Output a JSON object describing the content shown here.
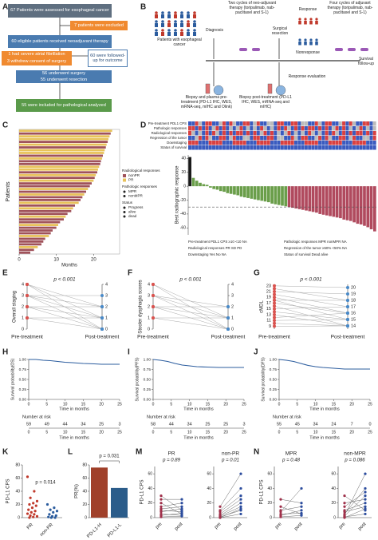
{
  "panel_labels": [
    "A",
    "B",
    "C",
    "D",
    "E",
    "F",
    "G",
    "H",
    "I",
    "J",
    "K",
    "L",
    "M",
    "N"
  ],
  "A": {
    "boxes": [
      "67 Patients were assessed for esophageal cancer",
      "7 patients were excluded",
      "60 eligible patients received neoadjuvant therapy",
      "1 had severe atrial fibrillation",
      "3 withdrew consent of surgery",
      "60 were followed-up for outcome",
      "56 underwent surgery",
      "55 underwent resection",
      "55 were included for pathological analyzed"
    ]
  },
  "B": {
    "patients": "Patients with esophageal cancer",
    "diagnosis": "Diagnosis",
    "neoadjuvant": "Two cycles of neo-adjuvant therapy (toripalimab, nab-paclitaxel and S-1)",
    "surgery": "Surgical resection",
    "response": "Response",
    "nonresponse": "Nonresponse",
    "adjuvant": "Four cycles of adjuvant therapy (toripalimab, nab-paclitaxel and S-1)",
    "followup": "Survival follow-up",
    "evaluation": "Response evaluation",
    "pre_biopsy": "Biopsy and plasma pre-treatment (PD-L1 IHC, WES, mRNA-seq, mIHC and Olink)",
    "post_biopsy": "Biopsy post-treatment (PD-L1 IHC, WES, mRNA-seq and mIHC)"
  },
  "C": {
    "ylabel": "Patients",
    "xlabel": "Months",
    "xlim": [
      0,
      27
    ],
    "xticks": [
      0,
      10,
      20
    ],
    "durations": [
      25,
      24.6,
      24.3,
      24,
      23.8,
      23.5,
      23.3,
      23,
      22.8,
      22.5,
      22.3,
      22,
      21.8,
      21.5,
      21.2,
      21,
      20.6,
      20.3,
      20,
      19.5,
      19,
      18.5,
      18,
      17.5,
      17,
      16.5,
      16,
      15,
      14.5,
      14,
      13,
      12.5,
      12,
      11,
      10.5,
      10,
      9,
      8.5,
      8,
      7,
      6.5,
      6,
      5,
      4,
      3
    ],
    "groups": [
      1,
      0,
      1,
      1,
      0,
      1,
      0,
      1,
      1,
      0,
      1,
      0,
      0,
      1,
      1,
      0,
      1,
      0,
      1,
      0,
      0,
      1,
      0,
      1,
      0,
      0,
      1,
      0,
      1,
      0,
      0,
      1,
      0,
      0,
      1,
      0,
      0,
      0,
      1,
      0,
      0,
      0,
      1,
      0,
      0
    ],
    "colors": [
      "#a0525a",
      "#e8c25a"
    ],
    "legend": [
      {
        "title": "Radiological responses",
        "items": [
          "nonPR",
          "PR"
        ]
      },
      {
        "title": "Pathologic responses",
        "items": [
          "MPR",
          "nonMPR"
        ]
      },
      {
        "title": "Status",
        "items": [
          "Progress",
          "alive",
          "dead"
        ]
      }
    ]
  },
  "D": {
    "rows": [
      "Pre-treatment PDL1 CPS",
      "Pathologic responses",
      "Radiological responses",
      "Regression of the tumor",
      "Downstaging",
      "Status of survival"
    ],
    "ylabel": "Best radiographic response",
    "ylim": [
      -70,
      45
    ],
    "yticks": [
      -60,
      -40,
      -20,
      0,
      20,
      40
    ],
    "reference_line": -30,
    "values": [
      42,
      12,
      8,
      5,
      3,
      2,
      -2,
      -4,
      -5,
      -7,
      -8,
      -10,
      -11,
      -12,
      -13,
      -15,
      -16,
      -17,
      -18,
      -19,
      -20,
      -21,
      -22,
      -23,
      -25,
      -26,
      -27,
      -28,
      -29,
      -30,
      -31,
      -32,
      -33,
      -34,
      -35,
      -36,
      -37,
      -38,
      -40,
      -41,
      -42,
      -43,
      -44,
      -45,
      -46,
      -48,
      -49,
      -50,
      -52,
      -54,
      -55,
      -57,
      -59,
      -62,
      -65
    ],
    "groups": [
      0,
      1,
      1,
      1,
      1,
      1,
      1,
      1,
      1,
      1,
      1,
      1,
      1,
      1,
      1,
      1,
      1,
      1,
      1,
      1,
      1,
      1,
      1,
      1,
      1,
      1,
      1,
      1,
      1,
      2,
      2,
      2,
      2,
      2,
      2,
      2,
      2,
      2,
      2,
      2,
      2,
      2,
      2,
      2,
      2,
      2,
      2,
      2,
      2,
      2,
      2,
      2,
      2,
      2,
      2
    ],
    "colors": [
      "#1a1a1a",
      "#6a9e4a",
      "#b04a5e"
    ],
    "legend": [
      "Pre-treatment PDL1 CPS ≥10 <10 NA",
      "Pathologic responses MPR nonMPR NA",
      "Radiological responses PR SD PD",
      "Regression of the tumor ≥50% <50% NA",
      "Downstaging Yes No NA",
      "Status of survival Dead alive"
    ]
  },
  "E": {
    "p": "p < 0.001",
    "ylabel": "Overall staging",
    "xlabels": [
      "Pre-treatment",
      "Post-treatment"
    ],
    "ylim": [
      0,
      4
    ],
    "yticks": [
      0,
      1,
      2,
      3,
      4
    ],
    "pre": [
      4,
      4,
      4,
      3,
      3,
      3,
      3,
      2,
      2,
      2,
      1,
      1
    ],
    "post": [
      0,
      1,
      2,
      0,
      1,
      2,
      3,
      0,
      1,
      2,
      0,
      1
    ]
  },
  "F": {
    "p": "p < 0.001",
    "ylabel": "Stooler dysphagia scores",
    "xlabels": [
      "Pre-treatment",
      "Post-treatment"
    ],
    "ylim": [
      0,
      4
    ],
    "yticks": [
      0,
      1,
      2,
      3,
      4
    ],
    "pre": [
      4,
      4,
      3,
      3,
      3,
      2,
      2,
      2,
      1,
      1
    ],
    "post": [
      0,
      1,
      0,
      1,
      2,
      0,
      1,
      2,
      0,
      1
    ]
  },
  "G": {
    "p": "p < 0.001",
    "ylabel": "cMDL",
    "xlabels": [
      "Pre-treatment",
      "Post-treatment"
    ],
    "ylim": [
      8,
      23.5
    ],
    "yticks": [
      9,
      11,
      13,
      15,
      17,
      19,
      21,
      23
    ],
    "y2lim": [
      13.5,
      20.5
    ],
    "y2ticks": [
      14,
      15,
      16,
      17,
      18,
      19,
      20
    ],
    "pre": [
      23,
      22,
      21,
      20,
      19,
      18,
      18,
      17,
      16,
      15,
      14,
      13,
      12,
      11,
      10,
      9
    ],
    "post": [
      20,
      18,
      19,
      17,
      16,
      18,
      15,
      16,
      14,
      17,
      15,
      14,
      16,
      15,
      14,
      14
    ]
  },
  "H": {
    "ylabel": "Survival probability(OS)",
    "xlabel": "Time in months",
    "risk_title": "Number at risk",
    "at_risk": [
      59,
      49,
      44,
      34,
      25,
      3
    ],
    "xlim": [
      0,
      25
    ],
    "xticks": [
      0,
      5,
      10,
      15,
      20,
      25
    ],
    "ylim": [
      0,
      1
    ],
    "yticks": [
      {
        "value": 0,
        "label": "0.00"
      },
      {
        "value": 0.25,
        "label": "0.25"
      },
      {
        "value": 0.5,
        "label": "0.50"
      },
      {
        "value": 0.75,
        "label": "0.75"
      },
      {
        "value": 1,
        "label": "1.00"
      }
    ],
    "x": [
      0,
      2,
      4,
      6,
      8,
      10,
      12,
      15,
      18,
      20,
      25
    ],
    "y": [
      1,
      1,
      0.98,
      0.97,
      0.95,
      0.93,
      0.92,
      0.9,
      0.89,
      0.88,
      0.88
    ],
    "color": "#2b5c9e"
  },
  "I": {
    "ylabel": "Survival probability(PFS)",
    "xlabel": "Time in months",
    "risk_title": "Number at risk",
    "at_risk": [
      58,
      44,
      34,
      25,
      25,
      3
    ],
    "xlim": [
      0,
      25
    ],
    "xticks": [
      0,
      5,
      10,
      15,
      20,
      25
    ],
    "ylim": [
      0,
      1
    ],
    "yticks": [
      {
        "value": 0,
        "label": "0.00"
      },
      {
        "value": 0.25,
        "label": "0.25"
      },
      {
        "value": 0.5,
        "label": "0.50"
      },
      {
        "value": 0.75,
        "label": "0.75"
      },
      {
        "value": 1,
        "label": "1.00"
      }
    ],
    "x": [
      0,
      2,
      4,
      6,
      8,
      10,
      12,
      15,
      18,
      20,
      25
    ],
    "y": [
      1,
      0.98,
      0.95,
      0.9,
      0.86,
      0.84,
      0.82,
      0.81,
      0.8,
      0.8,
      0.8
    ],
    "color": "#2b5c9e"
  },
  "J": {
    "ylabel": "Survival probability(DFS)",
    "xlabel": "Time in months",
    "risk_title": "Number at risk",
    "at_risk": [
      55,
      45,
      34,
      24,
      7,
      0
    ],
    "xlim": [
      0,
      25
    ],
    "xticks": [
      0,
      5,
      10,
      15,
      20,
      25
    ],
    "ylim": [
      0,
      1
    ],
    "yticks": [
      {
        "value": 0,
        "label": "0.00"
      },
      {
        "value": 0.25,
        "label": "0.25"
      },
      {
        "value": 0.5,
        "label": "0.50"
      },
      {
        "value": 0.75,
        "label": "0.75"
      },
      {
        "value": 1,
        "label": "1.00"
      }
    ],
    "x": [
      0,
      2,
      4,
      6,
      8,
      10,
      12,
      15,
      18,
      20,
      25
    ],
    "y": [
      1,
      0.98,
      0.95,
      0.9,
      0.85,
      0.82,
      0.8,
      0.78,
      0.76,
      0.76,
      0.76
    ],
    "color": "#2b5c9e"
  },
  "K": {
    "ylabel": "PD-L1 CPS",
    "p": "p = 0.014",
    "categories": [
      "PR",
      "non-PR"
    ],
    "ylim": [
      0,
      80
    ],
    "yticks": [
      0,
      20,
      40,
      60,
      80
    ],
    "colors": [
      "#c0392b",
      "#2b5c9e"
    ],
    "values": [
      [
        62,
        40,
        30,
        25,
        22,
        20,
        18,
        15,
        12,
        10,
        8,
        6,
        5,
        3,
        2,
        1,
        0
      ],
      [
        20,
        15,
        12,
        10,
        8,
        5,
        3,
        2,
        1,
        0,
        0
      ]
    ]
  },
  "L": {
    "ylabel": "PR(%)",
    "p": "p = 0.031",
    "categories": [
      "PD-L1-H",
      "PD-L1-L"
    ],
    "values": [
      76,
      45
    ],
    "colors": [
      "#a0402a",
      "#2b5c8a"
    ],
    "ylim": [
      0,
      80
    ],
    "yticks": [
      0,
      20,
      40,
      60,
      80
    ]
  },
  "M": {
    "ylabel": "PD-L1 CPS",
    "ylim": [
      0,
      70
    ],
    "yticks": [
      0,
      20,
      40,
      60
    ],
    "xlabels": [
      "pre",
      "post"
    ],
    "subplots": [
      {
        "title": "PR",
        "p": "p = 0.89",
        "pre": [
          30,
          25,
          20,
          15,
          12,
          10,
          8,
          5,
          3,
          1
        ],
        "post": [
          10,
          25,
          5,
          20,
          15,
          8,
          12,
          3,
          6,
          2
        ]
      },
      {
        "title": "non-PR",
        "p": "p = 0.01",
        "pre": [
          10,
          8,
          5,
          3,
          2,
          1,
          0,
          0,
          15
        ],
        "post": [
          40,
          30,
          25,
          20,
          15,
          10,
          5,
          12,
          60
        ]
      }
    ]
  },
  "N": {
    "ylabel": "PD-L1 CPS",
    "ylim": [
      0,
      70
    ],
    "yticks": [
      0,
      20,
      40,
      60
    ],
    "xlabels": [
      "pre",
      "post"
    ],
    "subplots": [
      {
        "title": "MPR",
        "p": "p = 0.48",
        "pre": [
          25,
          15,
          10,
          8,
          5,
          3,
          1
        ],
        "post": [
          20,
          5,
          15,
          40,
          6,
          10,
          3
        ]
      },
      {
        "title": "non-MPR",
        "p": "p = 0.086",
        "pre": [
          30,
          20,
          15,
          10,
          8,
          5,
          3,
          2,
          1,
          0
        ],
        "post": [
          10,
          25,
          35,
          20,
          15,
          40,
          60,
          30,
          5,
          12
        ]
      }
    ]
  }
}
